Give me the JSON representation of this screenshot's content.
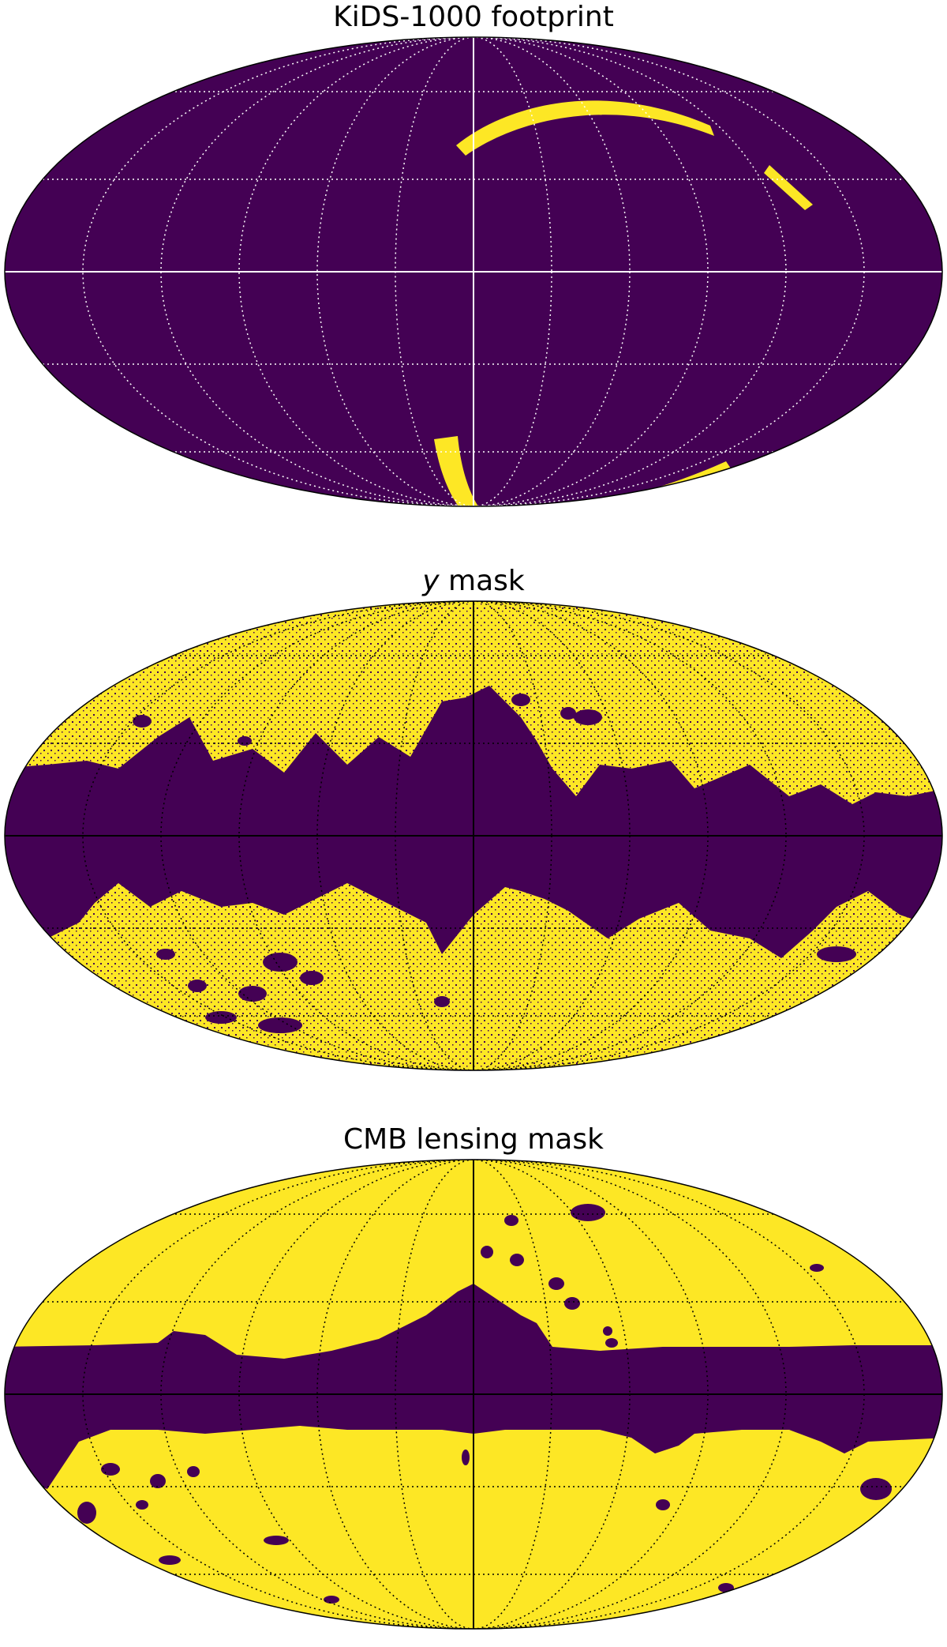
{
  "figure": {
    "colors": {
      "masked": "#440154",
      "unmasked": "#fde725",
      "outline": "#000000",
      "background": "#ffffff"
    },
    "projection": "Mollweide",
    "graticule": "dotted",
    "panels": [
      {
        "id": "kids",
        "title": "KiDS-1000 footprint",
        "title_italic": "",
        "title_rest": "",
        "graticule_color": "#ffffff",
        "axes_color": "#ffffff",
        "description_colormap": "binary mask (0 = masked, 1 = observed)"
      },
      {
        "id": "ymask",
        "title": "",
        "title_italic": "y",
        "title_rest": " mask",
        "graticule_color": "#000000",
        "axes_color": "#000000"
      },
      {
        "id": "cmb",
        "title": "CMB lensing mask",
        "title_italic": "",
        "title_rest": "",
        "graticule_color": "#000000",
        "axes_color": "#000000"
      }
    ]
  }
}
